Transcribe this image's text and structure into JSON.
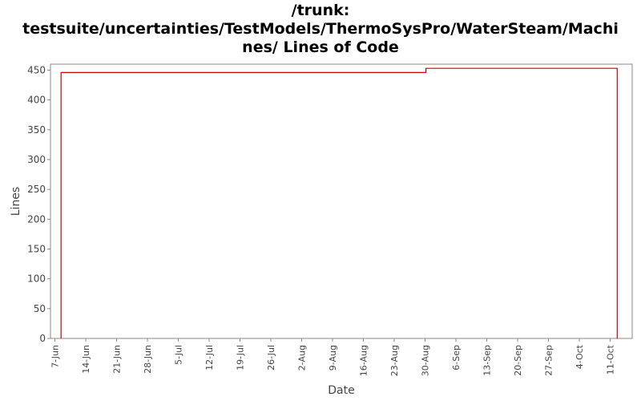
{
  "chart_data": {
    "type": "line",
    "title_lines": [
      "/trunk:",
      "testsuite/uncertainties/TestModels/ThermoSysPro/WaterSteam/Machi",
      "nes/ Lines of Code"
    ],
    "xlabel": "Date",
    "ylabel": "Lines",
    "ylim": [
      0,
      460
    ],
    "yticks": [
      0,
      50,
      100,
      150,
      200,
      250,
      300,
      350,
      400,
      450
    ],
    "x_range_days": [
      -1,
      131
    ],
    "xticks": [
      {
        "label": "7-Jun",
        "day": 0
      },
      {
        "label": "14-Jun",
        "day": 7
      },
      {
        "label": "21-Jun",
        "day": 14
      },
      {
        "label": "28-Jun",
        "day": 21
      },
      {
        "label": "5-Jul",
        "day": 28
      },
      {
        "label": "12-Jul",
        "day": 35
      },
      {
        "label": "19-Jul",
        "day": 42
      },
      {
        "label": "26-Jul",
        "day": 49
      },
      {
        "label": "2-Aug",
        "day": 56
      },
      {
        "label": "9-Aug",
        "day": 63
      },
      {
        "label": "16-Aug",
        "day": 70
      },
      {
        "label": "23-Aug",
        "day": 77
      },
      {
        "label": "30-Aug",
        "day": 84
      },
      {
        "label": "6-Sep",
        "day": 91
      },
      {
        "label": "13-Sep",
        "day": 98
      },
      {
        "label": "20-Sep",
        "day": 105
      },
      {
        "label": "27-Sep",
        "day": 112
      },
      {
        "label": "4-Oct",
        "day": 119
      },
      {
        "label": "11-Oct",
        "day": 126
      }
    ],
    "series": [
      {
        "color": "#cc0000",
        "step": true,
        "points": [
          {
            "day": 1.4,
            "value": 0
          },
          {
            "day": 1.4,
            "value": 446
          },
          {
            "day": 84.2,
            "value": 446
          },
          {
            "day": 84.2,
            "value": 453
          },
          {
            "day": 127.6,
            "value": 453
          },
          {
            "day": 127.6,
            "value": 0
          }
        ]
      }
    ],
    "grid": false,
    "legend": "none"
  }
}
